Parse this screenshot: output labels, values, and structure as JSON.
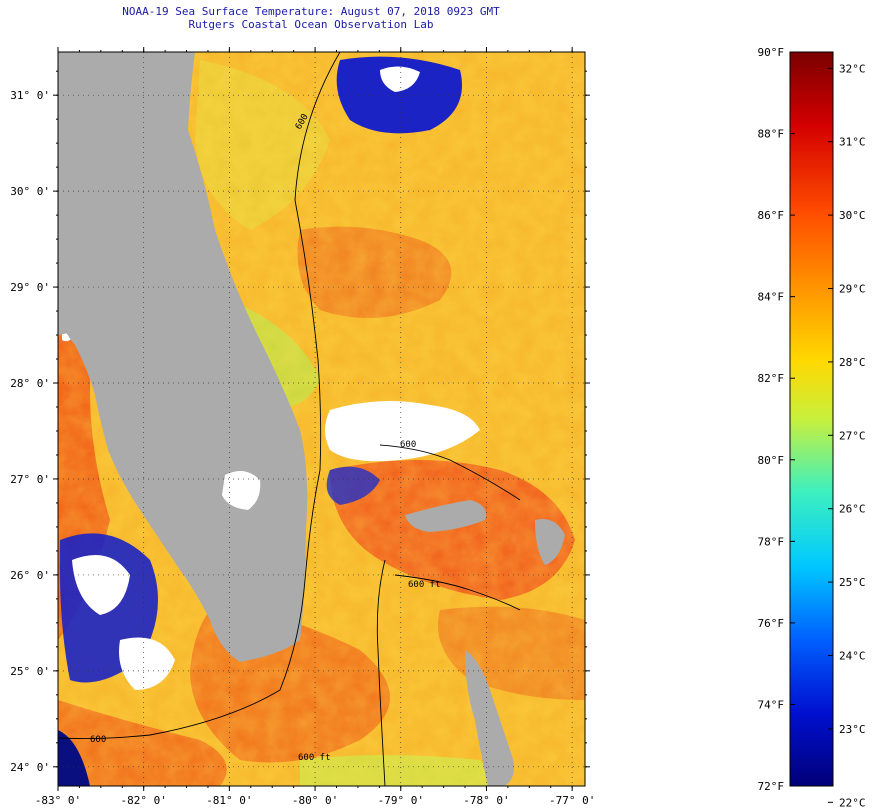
{
  "title": {
    "line1": "NOAA-19 Sea Surface Temperature:  August 07, 2018 0923 GMT",
    "line2": "Rutgers Coastal Ocean Observation Lab"
  },
  "map": {
    "lat_labels": [
      "31° 0'",
      "30° 0'",
      "29° 0'",
      "28° 0'",
      "27° 0'",
      "26° 0'",
      "25° 0'",
      "24° 0'"
    ],
    "lat_values": [
      31,
      30,
      29,
      28,
      27,
      26,
      25,
      24
    ],
    "lon_labels": [
      "-83° 0'",
      "-82° 0'",
      "-81° 0'",
      "-80° 0'",
      "-79° 0'",
      "-78° 0'",
      "-77° 0'"
    ],
    "lon_values": [
      -83,
      -82,
      -81,
      -80,
      -79,
      -78,
      -77
    ],
    "lat_range": [
      23.8,
      31.45
    ],
    "lon_range": [
      -83,
      -76.85
    ],
    "contour_labels": [
      "600",
      "600",
      "600 ft",
      "600 ft",
      "600"
    ],
    "colors": {
      "land": "#ababab",
      "cloud": "#ffffff",
      "warm": "#f05a14",
      "mid": "#f7b52a",
      "cool": "#1b23c4"
    }
  },
  "colorbar": {
    "f_labels": [
      "90°F",
      "88°F",
      "86°F",
      "84°F",
      "82°F",
      "80°F",
      "78°F",
      "76°F",
      "74°F",
      "72°F"
    ],
    "f_values": [
      90,
      88,
      86,
      84,
      82,
      80,
      78,
      76,
      74,
      72
    ],
    "c_labels": [
      "32°C",
      "31°C",
      "30°C",
      "29°C",
      "28°C",
      "27°C",
      "26°C",
      "25°C",
      "24°C",
      "23°C",
      "22°C"
    ],
    "c_values": [
      32,
      31,
      30,
      29,
      28,
      27,
      26,
      25,
      24,
      23,
      22
    ],
    "range_f": [
      72,
      90
    ],
    "stops": [
      "#7a0000",
      "#d40000",
      "#ff4d00",
      "#ff9a00",
      "#ffd800",
      "#c8f03c",
      "#3cf0c0",
      "#00c8ff",
      "#0060ff",
      "#0010d0",
      "#000078"
    ]
  }
}
